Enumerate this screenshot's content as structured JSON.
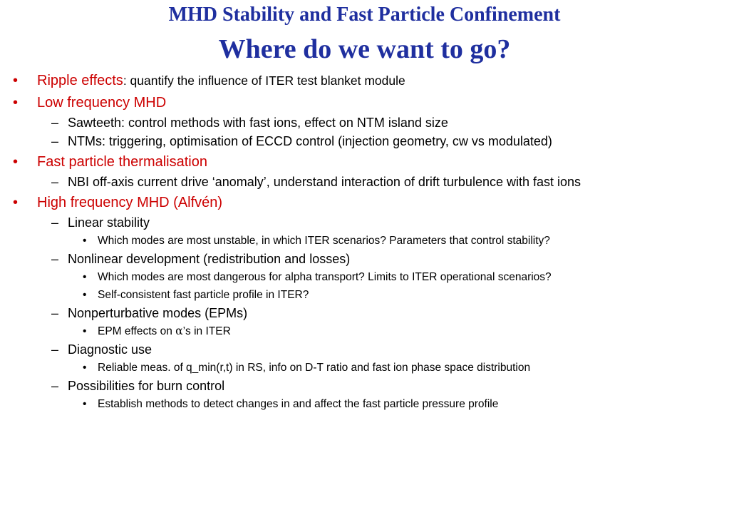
{
  "title": {
    "line1": "MHD Stability and Fast Particle Confinement",
    "line2": "Where do we want to go?"
  },
  "items": {
    "ripple": {
      "head": "Ripple effects",
      "rest": ": quantify the influence of ITER test blanket module"
    },
    "low_freq": {
      "head": "Low frequency MHD",
      "sub1": "Sawteeth: control methods with fast ions, effect on NTM island size",
      "sub2": "NTMs: triggering, optimisation of ECCD control (injection geometry, cw vs modulated)"
    },
    "thermal": {
      "head": "Fast particle thermalisation",
      "sub1": "NBI off-axis current drive ‘anomaly’, understand interaction of drift turbulence with fast ions"
    },
    "high_freq": {
      "head": "High frequency MHD (Alfvén)",
      "linear": "Linear stability",
      "linear_b1": "Which modes are most unstable, in which ITER scenarios? Parameters that control stability?",
      "nonlinear": "Nonlinear development (redistribution and losses)",
      "nonlinear_b1": "Which modes are most dangerous for alpha transport? Limits to ITER operational scenarios?",
      "nonlinear_b2": "Self-consistent fast particle profile in ITER?",
      "nonpert": "Nonperturbative modes (EPMs)",
      "nonpert_b1_pre": "EPM effects on ",
      "nonpert_b1_greek": "α",
      "nonpert_b1_post": "’s in ITER",
      "diag": "Diagnostic use",
      "diag_b1": "Reliable meas. of q_min(r,t) in RS, info on D-T ratio and fast ion phase space distribution",
      "burn": "Possibilities for burn control",
      "burn_b1": "Establish methods to detect changes in and affect the fast particle pressure profile"
    }
  },
  "symbols": {
    "bullet": "•",
    "dash": "–",
    "dot": "•"
  }
}
